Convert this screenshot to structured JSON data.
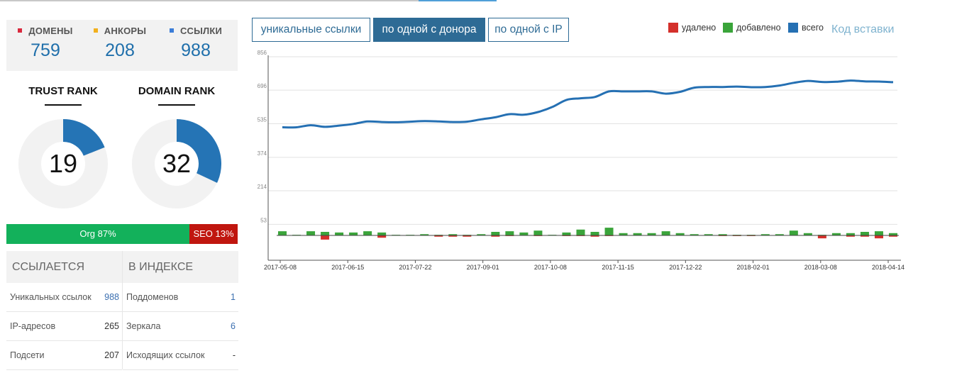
{
  "summary": [
    {
      "label": "ДОМЕНЫ",
      "value": "759",
      "color": "#d9293d"
    },
    {
      "label": "АНКОРЫ",
      "value": "208",
      "color": "#f2b01e"
    },
    {
      "label": "ССЫЛКИ",
      "value": "988",
      "color": "#3b7dd8"
    }
  ],
  "ranks": [
    {
      "title": "TRUST RANK",
      "value": "19",
      "fraction": 0.19
    },
    {
      "title": "DOMAIN RANK",
      "value": "32",
      "fraction": 0.32
    }
  ],
  "traffic": {
    "org_label": "Org 87%",
    "seo_label": "SEO 13%",
    "org_fraction": 0.87
  },
  "links_table": {
    "header": "ССЫЛАЕТСЯ",
    "rows": [
      {
        "label": "Уникальных ссылок",
        "value": "988"
      },
      {
        "label": "IP-адресов",
        "value": "265"
      },
      {
        "label": "Подсети",
        "value": "207"
      }
    ]
  },
  "index_table": {
    "header": "В ИНДЕКСЕ",
    "rows": [
      {
        "label": "Поддоменов",
        "value": "1"
      },
      {
        "label": "Зеркала",
        "value": "6"
      },
      {
        "label": "Исходящих ссылок",
        "value": "-"
      }
    ]
  },
  "tabs": [
    {
      "label": "уникальные ссылки",
      "active": false
    },
    {
      "label": "по одной с донора",
      "active": true
    },
    {
      "label": "по одной с IP",
      "active": false
    }
  ],
  "legend": [
    {
      "label": "удалено",
      "color": "#d4302b"
    },
    {
      "label": "добавлено",
      "color": "#3aa43a"
    },
    {
      "label": "всего",
      "color": "#2570b3"
    }
  ],
  "embed_link": "Код вставки",
  "chart_data": {
    "type": "line",
    "y_ticks": [
      "856",
      "696",
      "535",
      "374",
      "214",
      "53"
    ],
    "ylim": [
      0,
      856
    ],
    "x_tick_labels": [
      "2017-05-08",
      "2017-06-15",
      "2017-07-22",
      "2017-09-01",
      "2017-10-08",
      "2017-11-15",
      "2017-12-22",
      "2018-02-01",
      "2018-03-08",
      "2018-04-14"
    ],
    "series": [
      {
        "name": "всего",
        "color": "#2570b3",
        "values": [
          518,
          518,
          528,
          520,
          526,
          534,
          546,
          543,
          542,
          545,
          548,
          546,
          543,
          545,
          556,
          566,
          581,
          578,
          591,
          615,
          649,
          657,
          663,
          690,
          690,
          690,
          690,
          679,
          688,
          708,
          711,
          711,
          713,
          710,
          711,
          718,
          731,
          740,
          735,
          736,
          742,
          738,
          737,
          734
        ]
      },
      {
        "name": "добавлено",
        "color": "#3aa43a",
        "values": [
          20,
          3,
          20,
          17,
          14,
          14,
          20,
          14,
          3,
          3,
          6,
          3,
          6,
          3,
          6,
          17,
          20,
          14,
          23,
          3,
          14,
          28,
          17,
          37,
          11,
          11,
          11,
          20,
          11,
          6,
          6,
          6,
          3,
          3,
          6,
          6,
          23,
          11,
          3,
          11,
          11,
          17,
          20,
          11
        ]
      },
      {
        "name": "удалено",
        "color": "#d4302b",
        "values": [
          0,
          0,
          0,
          -20,
          0,
          0,
          0,
          -11,
          0,
          0,
          0,
          -6,
          -6,
          -6,
          0,
          -6,
          -3,
          0,
          -3,
          0,
          -3,
          -3,
          -6,
          -3,
          0,
          0,
          0,
          0,
          0,
          0,
          0,
          -3,
          -3,
          -3,
          0,
          0,
          0,
          0,
          -14,
          0,
          -6,
          -6,
          -14,
          -6
        ]
      }
    ]
  }
}
